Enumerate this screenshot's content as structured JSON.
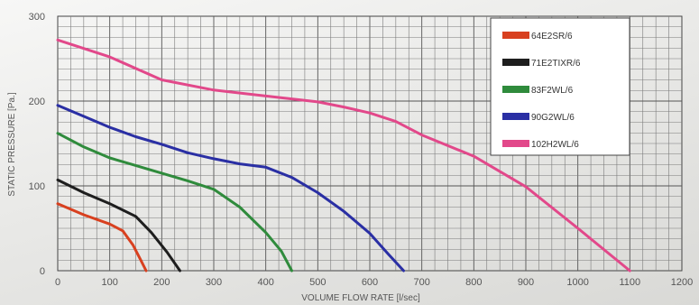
{
  "chart_data": {
    "type": "line",
    "xlabel": "VOLUME FLOW RATE [l/sec]",
    "ylabel": "STATIC PRESSURE [Pa.]",
    "xlim": [
      0,
      1200
    ],
    "ylim": [
      0,
      300
    ],
    "x_ticks": [
      0,
      100,
      200,
      300,
      400,
      500,
      600,
      700,
      800,
      900,
      1000,
      1100,
      1200
    ],
    "y_ticks": [
      0,
      100,
      200,
      300
    ],
    "grid": true,
    "legend_position": "top-right",
    "series": [
      {
        "name": "64E2SR/6",
        "color": "#d8401f",
        "points": [
          [
            0,
            79
          ],
          [
            50,
            66
          ],
          [
            100,
            55
          ],
          [
            125,
            47
          ],
          [
            145,
            30
          ],
          [
            160,
            12
          ],
          [
            170,
            0
          ]
        ]
      },
      {
        "name": "71E2TIXR/6",
        "color": "#1e1e1e",
        "points": [
          [
            0,
            107
          ],
          [
            50,
            92
          ],
          [
            100,
            79
          ],
          [
            150,
            64
          ],
          [
            180,
            45
          ],
          [
            210,
            22
          ],
          [
            235,
            0
          ]
        ]
      },
      {
        "name": "83F2WL/6",
        "color": "#2f8b3c",
        "points": [
          [
            0,
            162
          ],
          [
            50,
            146
          ],
          [
            100,
            133
          ],
          [
            150,
            124
          ],
          [
            200,
            115
          ],
          [
            250,
            106
          ],
          [
            300,
            96
          ],
          [
            350,
            75
          ],
          [
            400,
            45
          ],
          [
            430,
            23
          ],
          [
            450,
            0
          ]
        ]
      },
      {
        "name": "90G2WL/6",
        "color": "#2a2fa4",
        "points": [
          [
            0,
            195
          ],
          [
            50,
            182
          ],
          [
            100,
            169
          ],
          [
            150,
            158
          ],
          [
            200,
            149
          ],
          [
            250,
            139
          ],
          [
            300,
            132
          ],
          [
            350,
            126
          ],
          [
            400,
            122
          ],
          [
            450,
            110
          ],
          [
            500,
            92
          ],
          [
            550,
            70
          ],
          [
            600,
            44
          ],
          [
            635,
            20
          ],
          [
            665,
            0
          ]
        ]
      },
      {
        "name": "102H2WL/6",
        "color": "#e2488a",
        "points": [
          [
            0,
            272
          ],
          [
            100,
            252
          ],
          [
            200,
            225
          ],
          [
            300,
            213
          ],
          [
            400,
            206
          ],
          [
            500,
            199
          ],
          [
            550,
            193
          ],
          [
            600,
            186
          ],
          [
            650,
            176
          ],
          [
            700,
            160
          ],
          [
            800,
            135
          ],
          [
            900,
            99
          ],
          [
            1000,
            50
          ],
          [
            1050,
            25
          ],
          [
            1100,
            0
          ]
        ]
      }
    ]
  }
}
